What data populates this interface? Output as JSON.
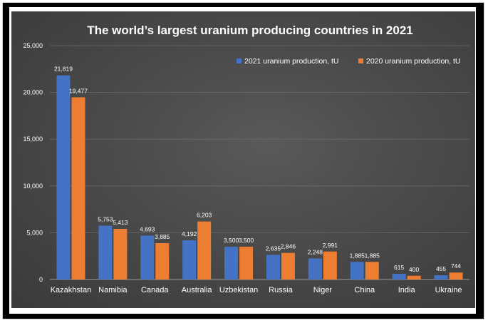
{
  "chart_data": {
    "type": "bar",
    "title": "The world’s largest uranium producing countries in 2021",
    "categories": [
      "Kazakhstan",
      "Namibia",
      "Canada",
      "Australia",
      "Uzbekistan",
      "Russia",
      "Niger",
      "China",
      "India",
      "Ukraine"
    ],
    "series": [
      {
        "name": "2021 uranium production, tU",
        "color": "#4472c4",
        "values": [
          21819,
          5753,
          4693,
          4192,
          3500,
          2635,
          2248,
          1885,
          615,
          455
        ],
        "labels": [
          "21,819",
          "5,753",
          "4,693",
          "4,192",
          "3,500",
          "2,635",
          "2,248",
          "1,885",
          "615",
          "455"
        ]
      },
      {
        "name": "2020 uranium production, tU",
        "color": "#ed7d31",
        "values": [
          19477,
          5413,
          3885,
          6203,
          3500,
          2846,
          2991,
          1885,
          400,
          744
        ],
        "labels": [
          "19,477",
          "5,413",
          "3,885",
          "6,203",
          "3,500",
          "2,846",
          "2,991",
          "1,885",
          "400",
          "744"
        ]
      }
    ],
    "ylim": [
      0,
      25000
    ],
    "yticks": [
      0,
      5000,
      10000,
      15000,
      20000,
      25000
    ],
    "ytick_labels": [
      "0",
      "5,000",
      "10,000",
      "15,000",
      "20,000",
      "25,000"
    ],
    "xlabel": "",
    "ylabel": "",
    "grid": true,
    "legend_position": "top-right"
  }
}
